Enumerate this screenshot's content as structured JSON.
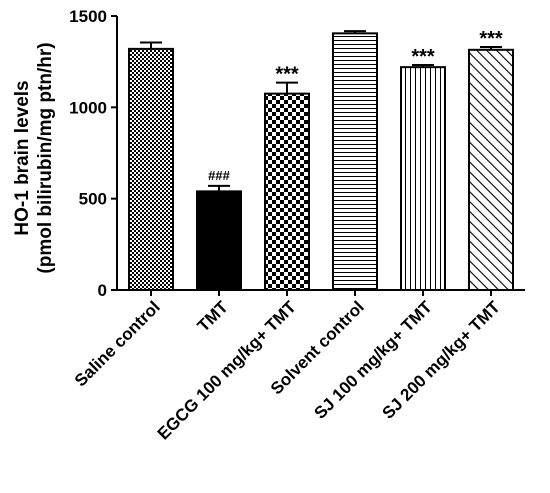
{
  "chart_data": {
    "type": "bar",
    "title": "",
    "ylabel_lines": [
      "HO-1 brain levels",
      "(pmol bilirubin/mg ptn/hr)"
    ],
    "xlabel": "",
    "ylim": [
      0,
      1500
    ],
    "yticks": [
      0,
      500,
      1000,
      1500
    ],
    "categories": [
      "Saline control",
      "TMT",
      "EGCG 100 mg/kg+ TMT",
      "Solvent control",
      "SJ 100 mg/kg+ TMT",
      "SJ 200 mg/kg+ TMT"
    ],
    "values": [
      1320,
      540,
      1075,
      1405,
      1220,
      1315
    ],
    "errors": [
      35,
      30,
      60,
      12,
      12,
      15
    ],
    "annotations": [
      "",
      "###",
      "***",
      "",
      "***",
      "***"
    ],
    "patterns": [
      "checker-small",
      "solid-black",
      "checker-large",
      "horizontal-lines",
      "vertical-lines",
      "diagonal-lines"
    ],
    "colors": {
      "bar_stroke": "#000000",
      "fill_dark": "#000000",
      "fill_light": "#ffffff"
    }
  }
}
